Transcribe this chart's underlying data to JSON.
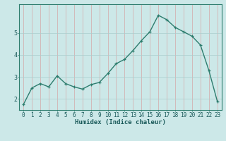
{
  "x": [
    0,
    1,
    2,
    3,
    4,
    5,
    6,
    7,
    8,
    9,
    10,
    11,
    12,
    13,
    14,
    15,
    16,
    17,
    18,
    19,
    20,
    21,
    22,
    23
  ],
  "y": [
    1.75,
    2.5,
    2.7,
    2.55,
    3.05,
    2.7,
    2.55,
    2.45,
    2.65,
    2.75,
    3.15,
    3.6,
    3.8,
    4.2,
    4.65,
    5.05,
    5.8,
    5.6,
    5.25,
    5.05,
    4.85,
    4.45,
    3.3,
    1.9
  ],
  "line_color": "#2e7d6e",
  "marker": "+",
  "xlabel": "Humidex (Indice chaleur)",
  "bg_color": "#cce8e8",
  "vgrid_color": "#d4a8a8",
  "hgrid_color": "#aacece",
  "yticks": [
    2,
    3,
    4,
    5
  ],
  "ylim": [
    1.5,
    6.3
  ],
  "xlim": [
    -0.5,
    23.5
  ],
  "xlabel_fontsize": 6.5,
  "tick_fontsize": 5.5
}
